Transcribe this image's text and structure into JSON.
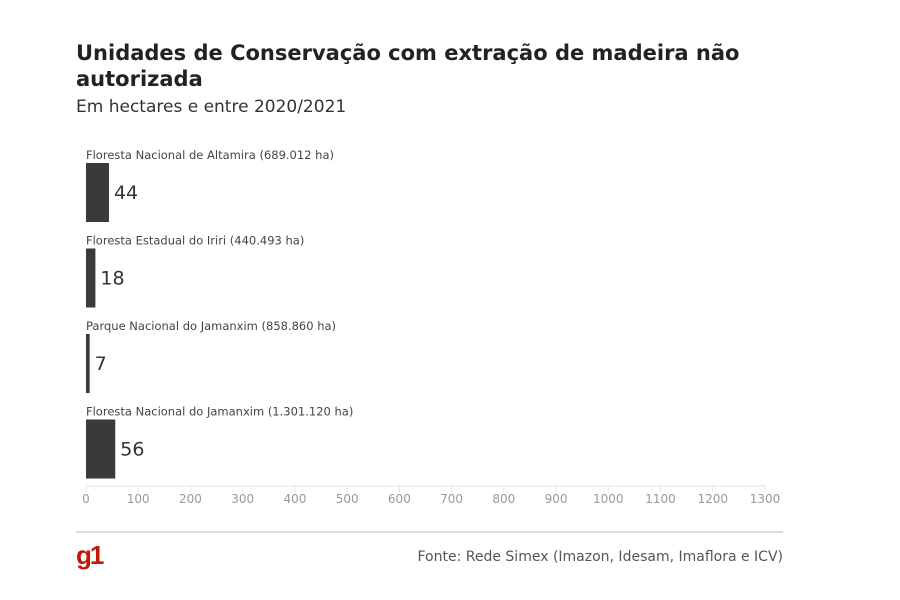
{
  "chart_data": {
    "type": "bar",
    "orientation": "horizontal",
    "title": "Unidades de Conservação com extração de madeira não autorizada",
    "subtitle": "Em hectares e entre 2020/2021",
    "categories": [
      "Floresta Nacional de Altamira (689.012 ha)",
      "Floresta Estadual do Iriri (440.493 ha)",
      "Parque Nacional do Jamanxim (858.860 ha)",
      "Floresta Nacional do Jamanxim (1.301.120 ha)"
    ],
    "values": [
      44,
      18,
      7,
      56
    ],
    "xlim": [
      0,
      1300
    ],
    "xticks": [
      0,
      100,
      200,
      300,
      400,
      500,
      600,
      700,
      800,
      900,
      1000,
      1100,
      1200,
      1300
    ],
    "grid": false,
    "bar_color": "#3a3a3a"
  },
  "footer": {
    "logo": "g1",
    "logo_color": "#c4170c",
    "source": "Fonte: Rede Simex (Imazon, Idesam, Imaflora e ICV)"
  }
}
